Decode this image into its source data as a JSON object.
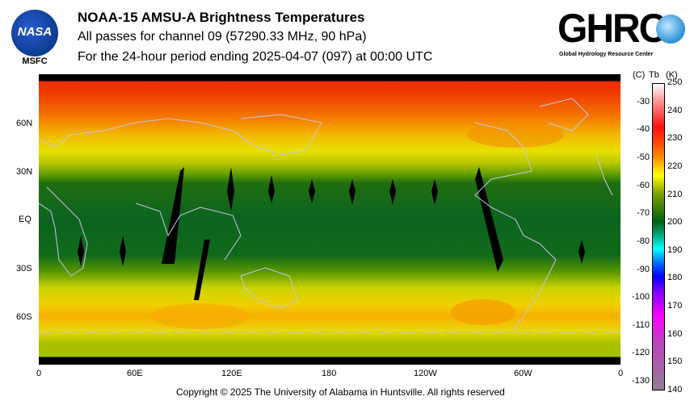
{
  "header": {
    "logo_left": "NASA",
    "logo_left_sub": "MSFC",
    "title": "NOAA-15 AMSU-A Brightness Temperatures",
    "subtitle": "All passes for channel 09 (57290.33 MHz, 90 hPa)",
    "period": "For the 24-hour period ending 2025-04-07 (097) at 00:00 UTC",
    "logo_right": "GHRC",
    "logo_right_sub": "Global Hydrology Resource Center"
  },
  "map": {
    "lat_labels": [
      "60N",
      "30N",
      "EQ",
      "30S",
      "60S"
    ],
    "lon_labels": [
      "0",
      "60E",
      "120E",
      "180",
      "120W",
      "60W",
      "0"
    ]
  },
  "colorbar": {
    "header_c": "(C)",
    "header_tb": "Tb",
    "header_k": "(K)",
    "celsius_ticks": [
      "-30",
      "-40",
      "-50",
      "-60",
      "-70",
      "-80",
      "-90",
      "-100",
      "-110",
      "-120",
      "-130"
    ],
    "kelvin_ticks": [
      "250",
      "240",
      "230",
      "220",
      "210",
      "200",
      "190",
      "180",
      "170",
      "160",
      "150",
      "140"
    ],
    "range_k": [
      140,
      250
    ]
  },
  "footer": {
    "copyright": "Copyright © 2025 The University of Alabama in Huntsville.  All rights reserved"
  }
}
